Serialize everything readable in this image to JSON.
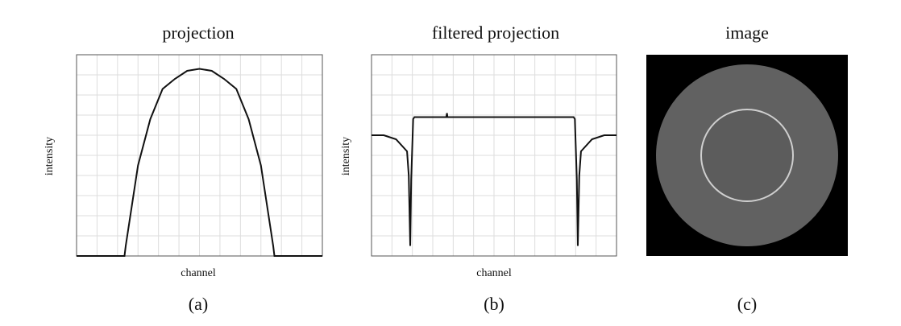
{
  "figure": {
    "panels": [
      {
        "id": "a",
        "title": "projection",
        "caption": "(a)"
      },
      {
        "id": "b",
        "title": "filtered projection",
        "caption": "(b)"
      },
      {
        "id": "c",
        "title": "image",
        "caption": "(c)"
      }
    ]
  },
  "chart_data": [
    {
      "type": "line",
      "title": "projection",
      "xlabel": "channel",
      "ylabel": "intensity",
      "grid": true,
      "xlim": [
        0,
        10
      ],
      "ylim": [
        0,
        10
      ],
      "series": [
        {
          "x": [
            0,
            1.95,
            2.0,
            2.5,
            3.0,
            3.5,
            4.0,
            4.5,
            5.0,
            5.5,
            6.0,
            6.5,
            7.0,
            7.5,
            8.0,
            8.05,
            10
          ],
          "values": [
            0,
            0,
            0.5,
            4.5,
            6.8,
            8.3,
            8.8,
            9.2,
            9.3,
            9.2,
            8.8,
            8.3,
            6.8,
            4.5,
            0.5,
            0,
            0
          ]
        }
      ],
      "color": "#111111"
    },
    {
      "type": "line",
      "title": "filtered projection",
      "xlabel": "channel",
      "ylabel": "intensity",
      "grid": true,
      "xlim": [
        0,
        10
      ],
      "ylim": [
        0,
        10
      ],
      "series": [
        {
          "x": [
            0,
            0.5,
            1.0,
            1.45,
            1.52,
            1.58,
            1.62,
            1.7,
            1.75,
            3.05,
            3.08,
            3.1,
            8.25,
            8.3,
            8.38,
            8.42,
            8.48,
            8.55,
            9.0,
            9.5,
            10
          ],
          "values": [
            6.0,
            6.0,
            5.8,
            5.2,
            4.0,
            0.5,
            3.8,
            6.8,
            6.9,
            6.9,
            7.1,
            6.9,
            6.9,
            6.8,
            3.8,
            0.5,
            4.0,
            5.2,
            5.8,
            6.0,
            6.0
          ]
        }
      ],
      "color": "#111111"
    }
  ],
  "image_panel": {
    "background": "#000000",
    "disk_fill": "#616161",
    "inner_disk_fill": "#5c5c5c",
    "ring_stroke": "#cfcfcf"
  }
}
